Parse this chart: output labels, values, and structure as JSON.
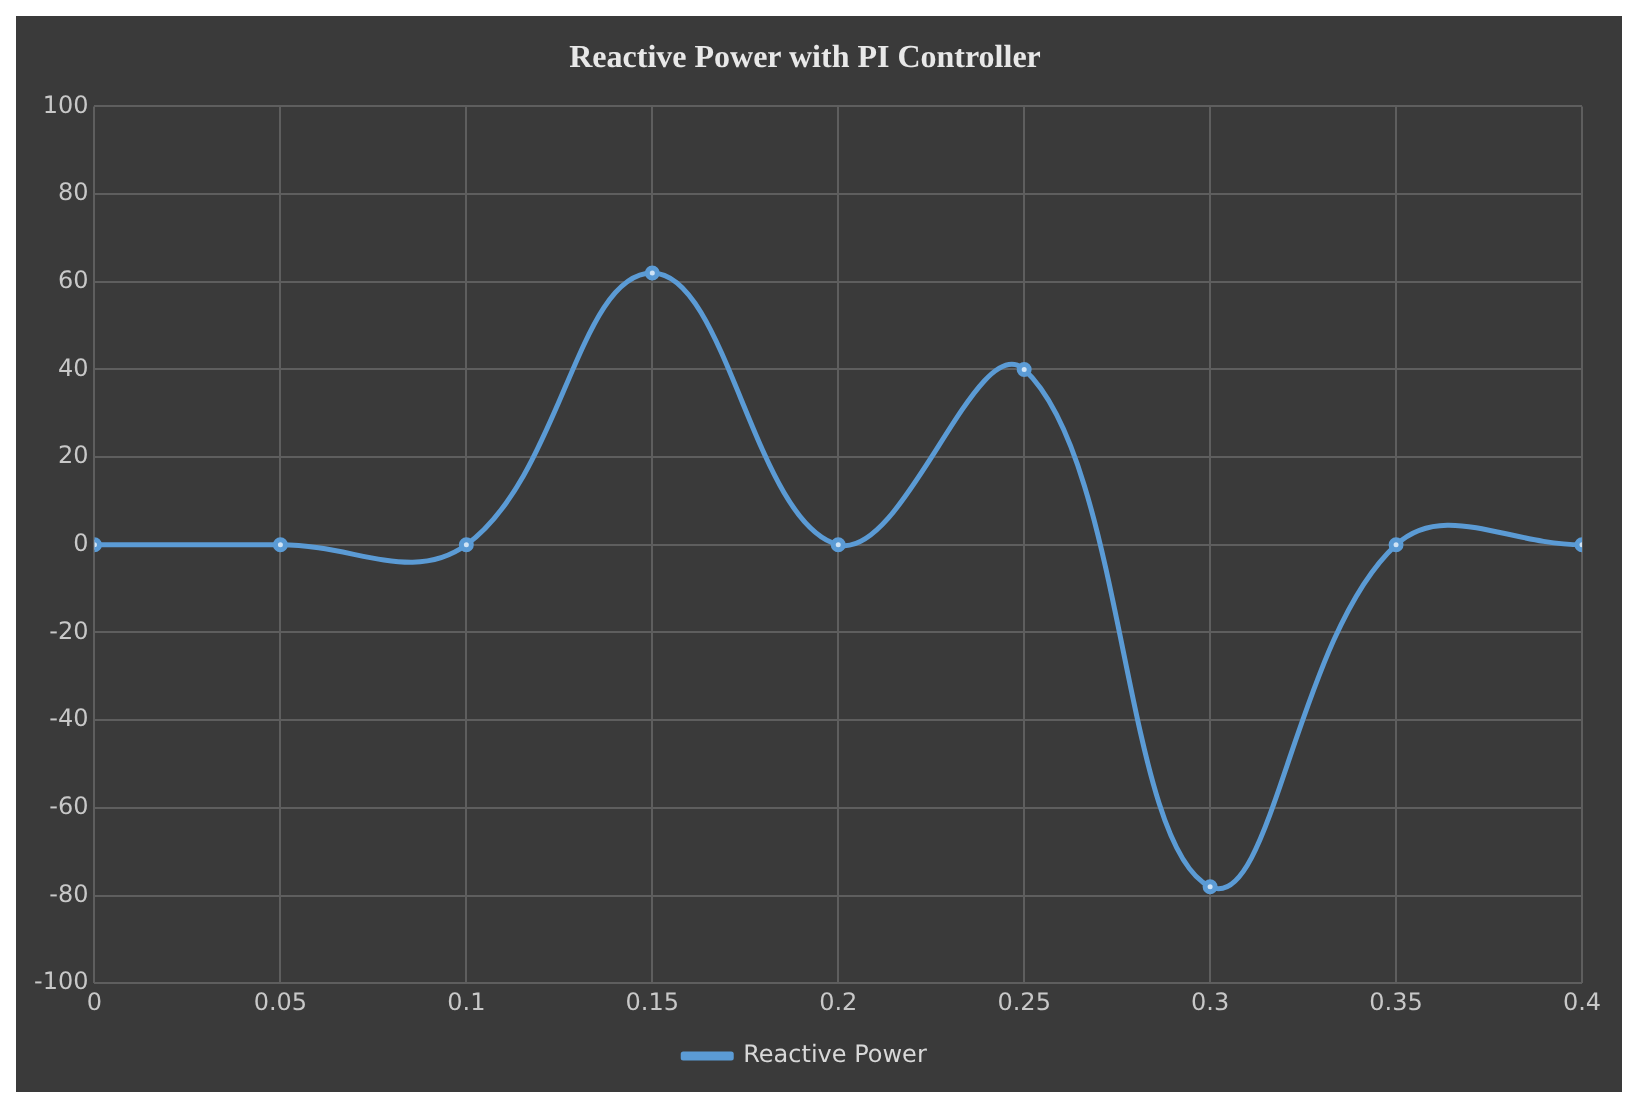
{
  "chart_data": {
    "type": "line",
    "title": "Reactive Power with PI Controller",
    "x": [
      0,
      0.05,
      0.1,
      0.15,
      0.2,
      0.25,
      0.3,
      0.35,
      0.4
    ],
    "series": [
      {
        "name": "Reactive Power",
        "color": "#5b9bd5",
        "values": [
          0,
          0,
          0,
          62,
          0,
          40,
          -78,
          0,
          0
        ]
      }
    ],
    "xlim": [
      0,
      0.4
    ],
    "xticks": [
      0,
      0.05,
      0.1,
      0.15,
      0.2,
      0.25,
      0.3,
      0.35,
      0.4
    ],
    "ylim": [
      -100,
      100
    ],
    "yticks": [
      -100,
      -80,
      -60,
      -40,
      -20,
      0,
      20,
      40,
      60,
      80,
      100
    ],
    "grid": true,
    "legend": "bottom",
    "marker": "circle",
    "line_style": "solid"
  }
}
